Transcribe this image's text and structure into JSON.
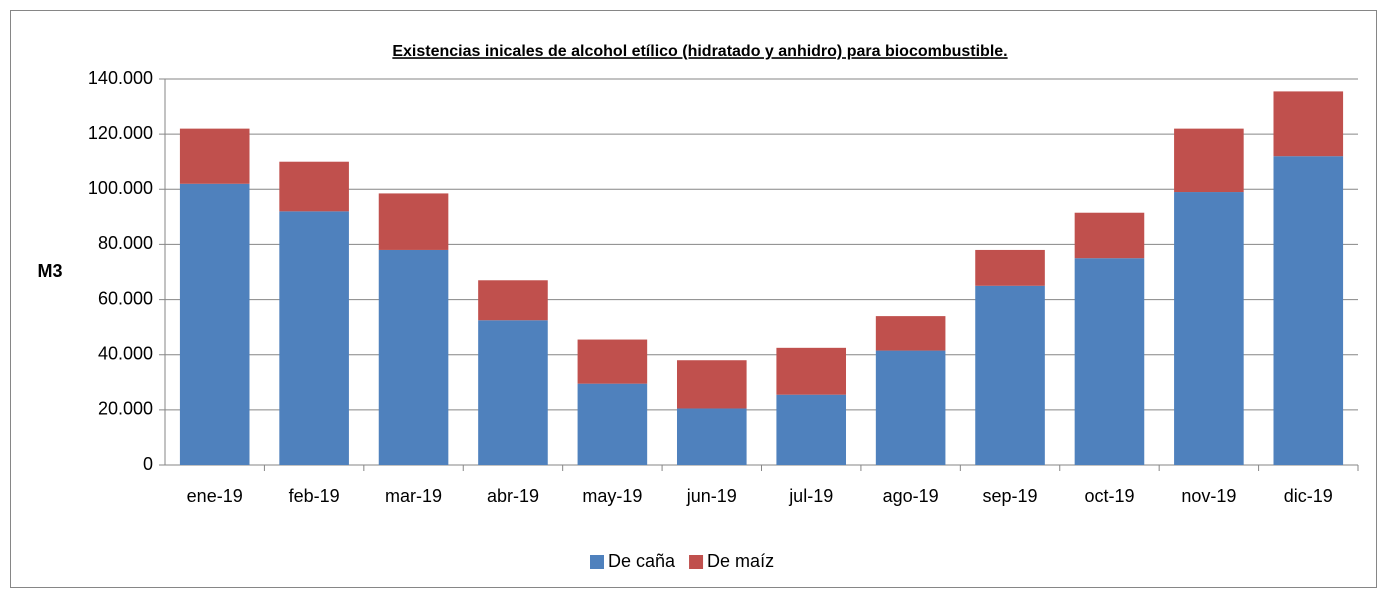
{
  "chart_data": {
    "type": "stacked-bar",
    "title": "Existencias inicales de alcohol etílico (hidratado y anhidro) para biocombustible.",
    "y_label": "M3",
    "categories": [
      "ene-19",
      "feb-19",
      "mar-19",
      "abr-19",
      "may-19",
      "jun-19",
      "jul-19",
      "ago-19",
      "sep-19",
      "oct-19",
      "nov-19",
      "dic-19"
    ],
    "series": [
      {
        "name": "De caña",
        "color": "#4f81bd",
        "values": [
          102000,
          92000,
          78000,
          52500,
          29500,
          20500,
          25500,
          41500,
          65000,
          75000,
          99000,
          112000
        ]
      },
      {
        "name": "De maíz",
        "color": "#c0504d",
        "values": [
          20000,
          18000,
          20500,
          14500,
          16000,
          17500,
          17000,
          12500,
          13000,
          16500,
          23000,
          23500
        ]
      }
    ],
    "ylim": [
      0,
      140000
    ],
    "yticks": [
      0,
      {
        "value": 20000,
        "label": "20.000"
      },
      {
        "value": 40000,
        "label": "40.000"
      },
      {
        "value": 60000,
        "label": "60.000"
      },
      {
        "value": 80000,
        "label": "80.000"
      },
      {
        "value": 100000,
        "label": "100.000"
      },
      {
        "value": 120000,
        "label": "120.000"
      },
      {
        "value": 140000,
        "label": "140.000"
      }
    ],
    "grid": true,
    "legend": "bottom"
  }
}
